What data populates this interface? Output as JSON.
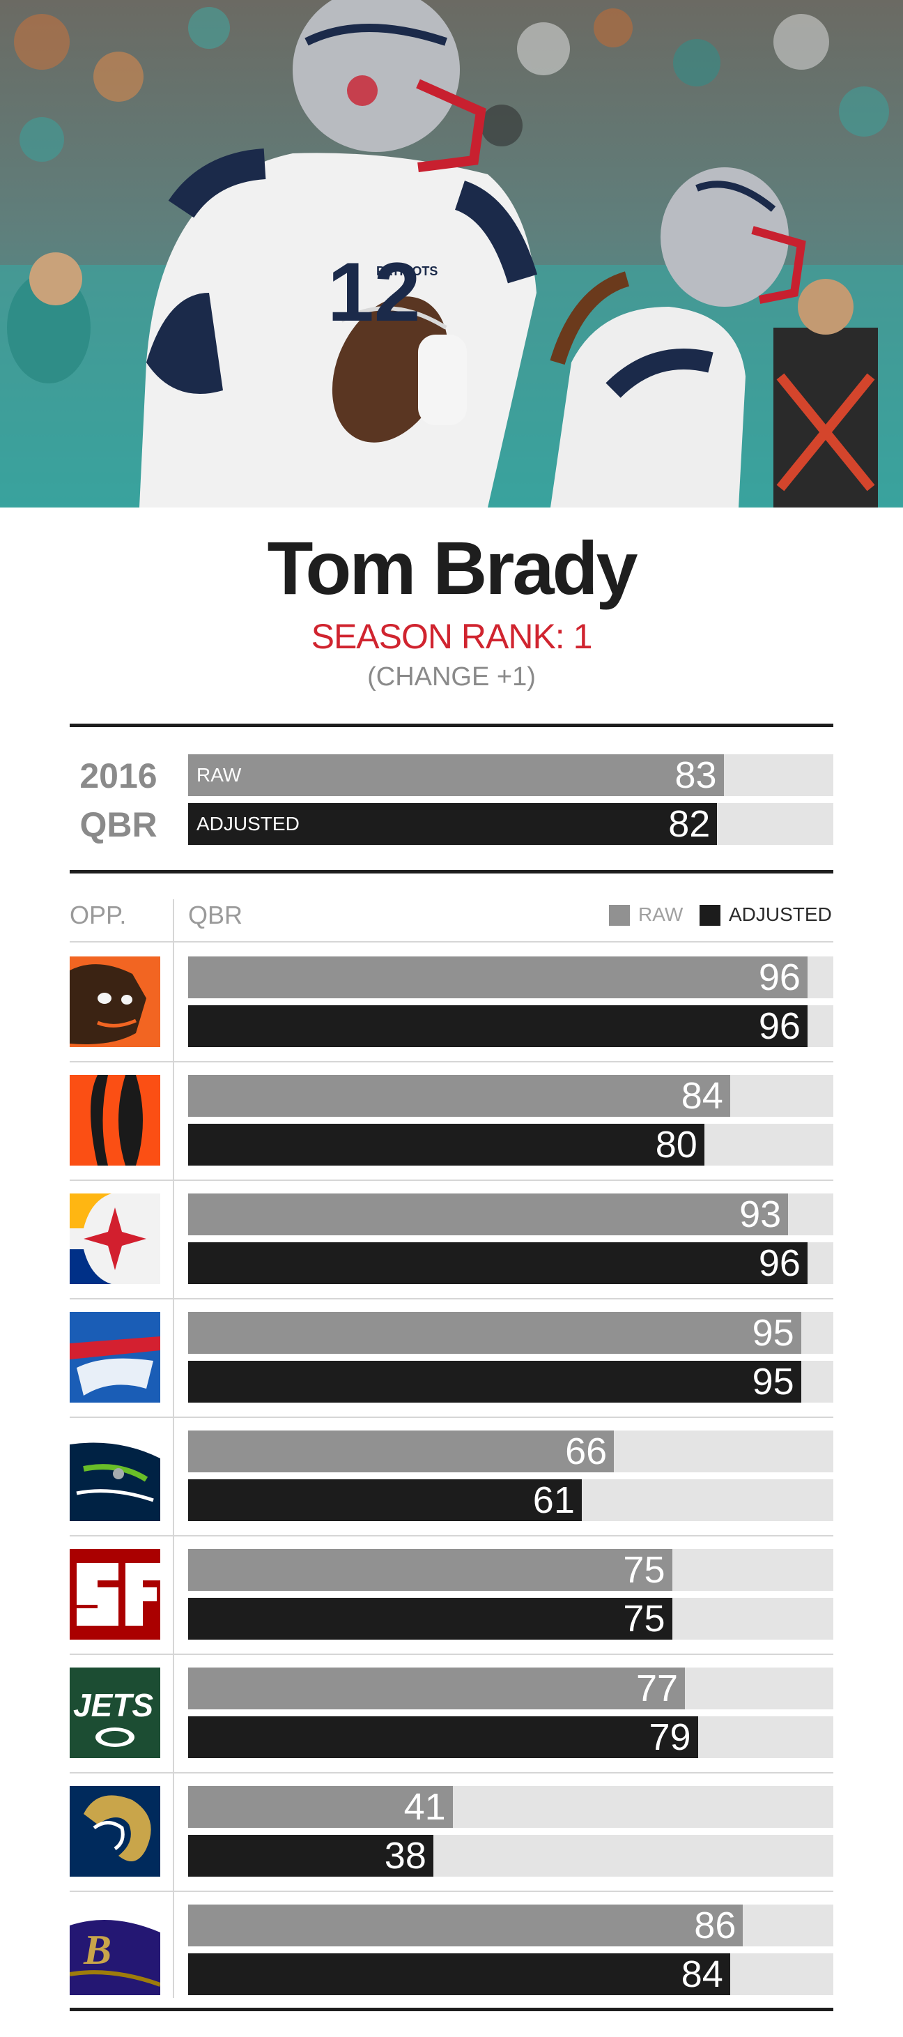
{
  "header": {
    "player_name": "Tom Brady",
    "season_rank": "SEASON RANK: 1",
    "rank_change": "(CHANGE +1)"
  },
  "season_summary": {
    "year": "2016",
    "metric": "QBR",
    "raw_label": "RAW",
    "adjusted_label": "ADJUSTED",
    "raw_value": 83,
    "adjusted_value": 82
  },
  "table": {
    "opp_header": "OPP.",
    "qbr_header": "QBR",
    "legend_raw": "RAW",
    "legend_adjusted": "ADJUSTED"
  },
  "colors": {
    "raw": "#919191",
    "adjusted": "#1c1c1c",
    "track": "#e4e4e4",
    "accent": "#d0242f"
  },
  "chart_data": {
    "type": "bar",
    "orientation": "horizontal",
    "xlim": [
      0,
      100
    ],
    "grid": false,
    "legend": "top-right",
    "categories": [
      "cleveland-browns",
      "cincinnati-bengals",
      "pittsburgh-steelers",
      "buffalo-bills",
      "seattle-seahawks",
      "san-francisco-49ers",
      "new-york-jets",
      "los-angeles-rams",
      "baltimore-ravens"
    ],
    "series": [
      {
        "name": "RAW",
        "values": [
          96,
          84,
          93,
          95,
          66,
          75,
          77,
          41,
          86
        ]
      },
      {
        "name": "ADJUSTED",
        "values": [
          96,
          80,
          96,
          95,
          61,
          75,
          79,
          38,
          84
        ]
      }
    ]
  },
  "logos": [
    {
      "icon": "browns-logo-icon"
    },
    {
      "icon": "bengals-logo-icon"
    },
    {
      "icon": "steelers-logo-icon"
    },
    {
      "icon": "bills-logo-icon"
    },
    {
      "icon": "seahawks-logo-icon"
    },
    {
      "icon": "49ers-logo-icon"
    },
    {
      "icon": "jets-logo-icon"
    },
    {
      "icon": "rams-logo-icon"
    },
    {
      "icon": "ravens-logo-icon"
    }
  ]
}
